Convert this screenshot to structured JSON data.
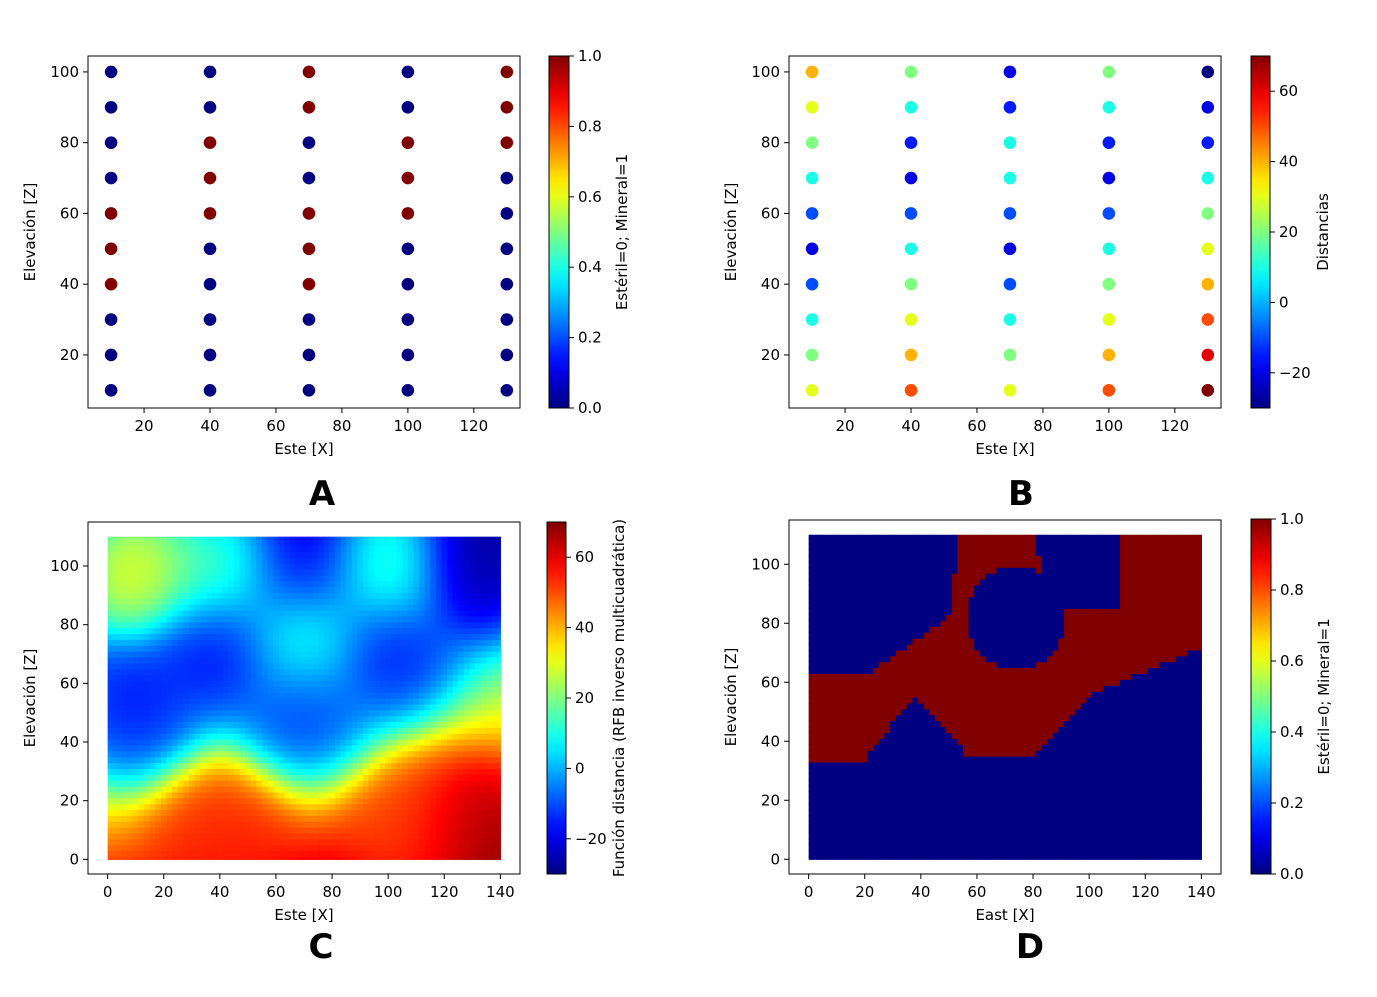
{
  "chart_data": [
    {
      "panel": "A",
      "type": "scatter",
      "xlabel": "Este [X]",
      "ylabel": "Elevación [Z]",
      "colorbar_label": "Estéril=0; Mineral=1",
      "colormap": "jet",
      "xlim": [
        3,
        134
      ],
      "ylim": [
        5,
        104.5
      ],
      "xticks": [
        20,
        40,
        60,
        80,
        100,
        120
      ],
      "yticks": [
        20,
        40,
        60,
        80,
        100
      ],
      "cbar_range": [
        0,
        1
      ],
      "cbar_ticks": [
        "0.0",
        "0.2",
        "0.4",
        "0.6",
        "0.8",
        "1.0"
      ],
      "x": [
        10,
        40,
        70,
        100,
        130
      ],
      "z": [
        100,
        90,
        80,
        70,
        60,
        50,
        40,
        30,
        20,
        10
      ],
      "values": [
        [
          0,
          0,
          1,
          0,
          1
        ],
        [
          0,
          0,
          1,
          0,
          1
        ],
        [
          0,
          1,
          0,
          1,
          1
        ],
        [
          0,
          1,
          0,
          1,
          0
        ],
        [
          1,
          1,
          1,
          1,
          0
        ],
        [
          1,
          0,
          1,
          0,
          0
        ],
        [
          1,
          0,
          1,
          0,
          0
        ],
        [
          0,
          0,
          0,
          0,
          0
        ],
        [
          0,
          0,
          0,
          0,
          0
        ],
        [
          0,
          0,
          0,
          0,
          0
        ]
      ]
    },
    {
      "panel": "B",
      "type": "scatter",
      "xlabel": "Este [X]",
      "ylabel": "Elevación [Z]",
      "colorbar_label": "Distancias",
      "colormap": "jet",
      "xlim": [
        3,
        134
      ],
      "ylim": [
        5,
        104.5
      ],
      "xticks": [
        20,
        40,
        60,
        80,
        100,
        120
      ],
      "yticks": [
        20,
        40,
        60,
        80,
        100
      ],
      "cbar_range": [
        -30,
        70
      ],
      "cbar_ticks": [
        "−20",
        "0",
        "20",
        "40",
        "60"
      ],
      "cbar_tick_values": [
        -20,
        0,
        20,
        40,
        60
      ],
      "x": [
        10,
        40,
        70,
        100,
        130
      ],
      "z": [
        100,
        90,
        80,
        70,
        60,
        50,
        40,
        30,
        20,
        10
      ],
      "values": [
        [
          40,
          20,
          -20,
          20,
          -30
        ],
        [
          30,
          10,
          -15,
          10,
          -20
        ],
        [
          20,
          -15,
          10,
          -15,
          -15
        ],
        [
          10,
          -20,
          10,
          -20,
          10
        ],
        [
          -10,
          -10,
          -10,
          -10,
          20
        ],
        [
          -20,
          10,
          -20,
          10,
          30
        ],
        [
          -10,
          20,
          -10,
          20,
          40
        ],
        [
          10,
          30,
          10,
          30,
          50
        ],
        [
          20,
          40,
          20,
          40,
          60
        ],
        [
          30,
          50,
          30,
          50,
          70
        ]
      ]
    },
    {
      "panel": "C",
      "type": "heatmap",
      "xlabel": "Este [X]",
      "ylabel": "Elevación [Z]",
      "colorbar_label": "Función distancia (RFB inverso multicuadrática)",
      "colormap": "jet",
      "xlim": [
        -7,
        147
      ],
      "ylim": [
        -5,
        115
      ],
      "extent_x": [
        0,
        140
      ],
      "extent_z": [
        0,
        110
      ],
      "xticks": [
        0,
        20,
        40,
        60,
        80,
        100,
        120,
        140
      ],
      "yticks": [
        0,
        20,
        40,
        60,
        80,
        100
      ],
      "cbar_range": [
        -30,
        70
      ],
      "cbar_ticks": [
        "−20",
        "0",
        "20",
        "40",
        "60"
      ],
      "cbar_tick_values": [
        -20,
        0,
        20,
        40,
        60
      ]
    },
    {
      "panel": "D",
      "type": "heatmap",
      "xlabel": "East [X]",
      "ylabel": "Elevación [Z]",
      "colorbar_label": "Estéril=0; Mineral=1",
      "colormap": "jet",
      "xlim": [
        -7,
        147
      ],
      "ylim": [
        -5,
        115
      ],
      "extent_x": [
        0,
        140
      ],
      "extent_z": [
        0,
        110
      ],
      "xticks": [
        0,
        20,
        40,
        60,
        80,
        100,
        120,
        140
      ],
      "yticks": [
        0,
        20,
        40,
        60,
        80,
        100
      ],
      "cbar_range": [
        0,
        1
      ],
      "cbar_ticks": [
        "0.0",
        "0.2",
        "0.4",
        "0.6",
        "0.8",
        "1.0"
      ]
    }
  ],
  "panel_labels": [
    "A",
    "B",
    "C",
    "D"
  ]
}
